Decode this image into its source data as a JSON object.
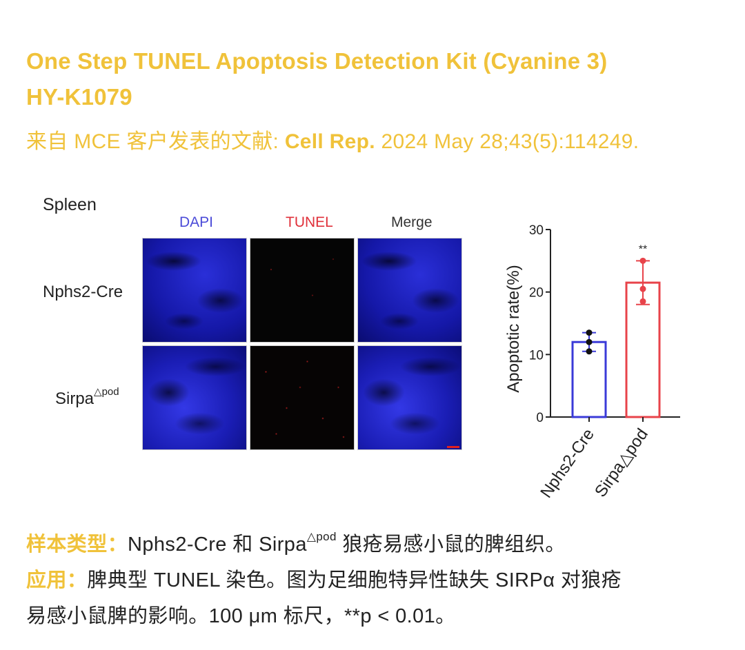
{
  "title": {
    "line1": "One Step TUNEL Apoptosis Detection Kit (Cyanine 3)",
    "line2": "HY-K1079"
  },
  "source": {
    "prefix": "来自 MCE 客户发表的文献: ",
    "journal": "Cell Rep.",
    "citation": " 2024 May 28;43(5):114249."
  },
  "figure": {
    "tissue": "Spleen",
    "columns": [
      "DAPI",
      "TUNEL",
      "Merge"
    ],
    "rows": [
      {
        "label": "Nphs2-Cre"
      },
      {
        "label": "Sirpa",
        "sup": "△pod"
      }
    ]
  },
  "chart_data": {
    "type": "bar",
    "categories": [
      "Nphs2-Cre",
      "Sirpa△pod"
    ],
    "values": [
      12,
      21.5
    ],
    "errors": [
      1.5,
      3.5
    ],
    "points": [
      [
        13.5,
        12,
        10.5
      ],
      [
        25,
        20.5,
        18.5
      ]
    ],
    "significance": [
      "",
      "**"
    ],
    "ylabel": "Apoptotic rate(%)",
    "ylim": [
      0,
      30
    ],
    "yticks": [
      0,
      10,
      20,
      30
    ],
    "colors": [
      "#3a3ad8",
      "#e8434a"
    ]
  },
  "description": {
    "sample_label": "样本类型：",
    "sample_text_a": "Nphs2-Cre 和 Sirpa",
    "sample_sup": "△pod",
    "sample_text_b": " 狼疮易感小鼠的脾组织。",
    "app_label": "应用：",
    "app_text_line1": "脾典型 TUNEL 染色。图为足细胞特异性缺失 SIRPα 对狼疮",
    "app_text_line2": "易感小鼠脾的影响。100 μm 标尺，**p < 0.01。"
  }
}
